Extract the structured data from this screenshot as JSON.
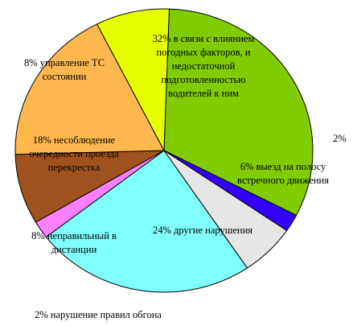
{
  "chart_data": {
    "type": "pie",
    "title": "",
    "grid": false,
    "legend": "none",
    "slices": [
      {
        "value": 32,
        "color": "#80cc00",
        "label": [
          "32% в связи с влиянием",
          "погодных факторов, и",
          "недостаточной",
          "подготовленностью",
          "водителей к ним"
        ]
      },
      {
        "value": 2,
        "color": "#3300ff",
        "label": [
          "2%"
        ]
      },
      {
        "value": 6,
        "color": "#e6e6e6",
        "label": [
          "6% выезд на полосу",
          "встречного движения"
        ]
      },
      {
        "value": 24,
        "color": "#80ffff",
        "label": [
          "24% другие нарушения"
        ]
      },
      {
        "value": 2,
        "color": "#ff80ff",
        "label": [
          "2% нарушение правил обгона"
        ]
      },
      {
        "value": 8,
        "color": "#a0521e",
        "label": [
          "8% неправильный в",
          "дистанции"
        ]
      },
      {
        "value": 18,
        "color": "#ffb84d",
        "label": [
          "18% несоблюдение",
          "очередности проезда",
          "перекрестка"
        ]
      },
      {
        "value": 8,
        "color": "#e6ff00",
        "label": [
          "8% управление ТС",
          "состоянии"
        ]
      }
    ]
  }
}
